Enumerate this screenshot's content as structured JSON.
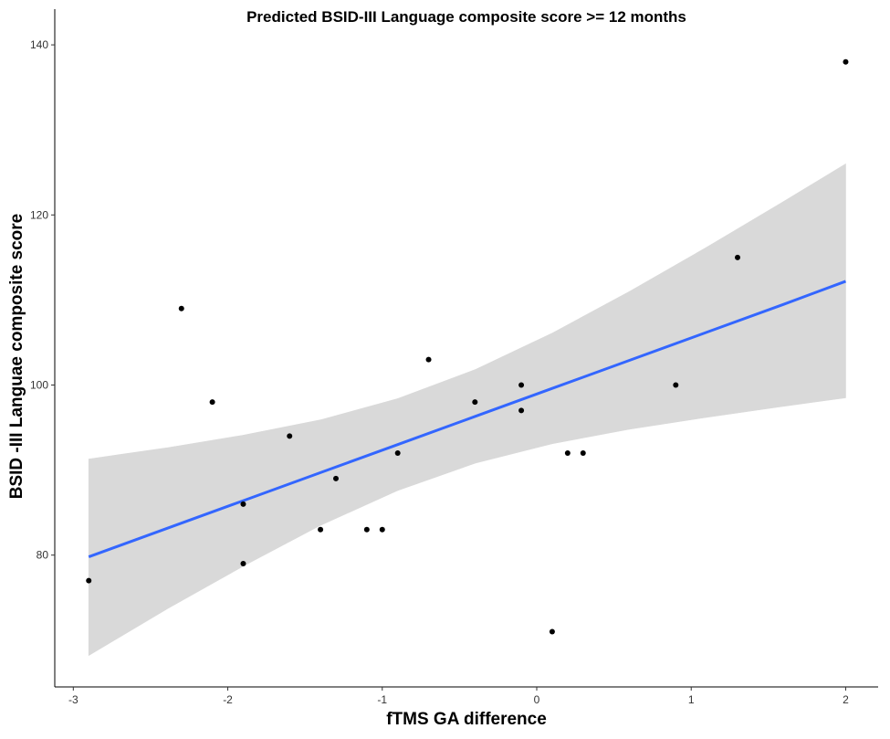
{
  "chart_data": {
    "type": "scatter",
    "title": "Predicted BSID-III Language composite score >= 12 months",
    "x_label": "fTMS GA difference",
    "y_label": "BSID -III Languae composite score",
    "x": [
      -2.9,
      -2.3,
      -2.1,
      -1.9,
      -1.9,
      -1.6,
      -1.4,
      -1.3,
      -1.1,
      -1.0,
      -0.9,
      -0.7,
      -0.4,
      -0.1,
      -0.1,
      0.1,
      0.2,
      0.3,
      0.9,
      1.3,
      2.0
    ],
    "values": [
      77,
      109,
      98,
      86,
      79,
      94,
      83,
      89,
      83,
      83,
      92,
      103,
      98,
      100,
      97,
      71,
      92,
      92,
      100,
      115,
      138
    ],
    "color": "#000000",
    "band": {
      "x": [
        -2.9,
        -2.4,
        -1.9,
        -1.4,
        -0.9,
        -0.4,
        0.1,
        0.6,
        1.1,
        1.6,
        2.0
      ],
      "fit": [
        79.8,
        83.1,
        86.4,
        89.7,
        93.0,
        96.3,
        99.6,
        102.9,
        106.2,
        109.5,
        112.2
      ],
      "lower": [
        68.2,
        73.6,
        78.7,
        83.5,
        87.6,
        90.8,
        93.1,
        94.8,
        96.2,
        97.5,
        98.5
      ],
      "upper": [
        91.3,
        92.6,
        94.1,
        95.9,
        98.4,
        101.8,
        106.1,
        111.0,
        116.2,
        121.6,
        126.0
      ],
      "fit_color": "#3366ff",
      "band_color": "#d9d9d9"
    },
    "xlim": [
      -3.12,
      2.21
    ],
    "ylim": [
      64.5,
      144.2
    ],
    "xticks": [
      -3,
      -2,
      -1,
      0,
      1,
      2
    ],
    "yticks": [
      80,
      100,
      120,
      140
    ],
    "grid": false
  }
}
